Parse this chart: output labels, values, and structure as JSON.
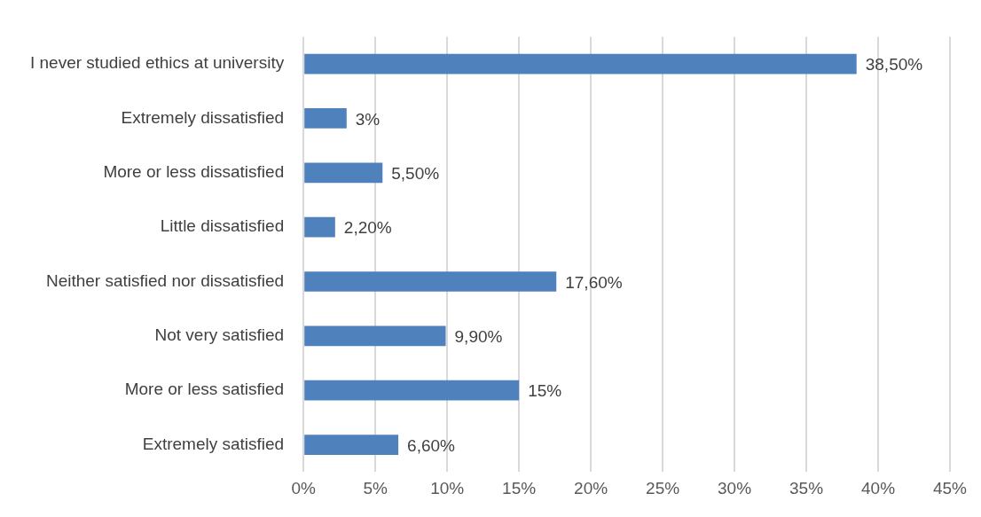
{
  "chart_data": {
    "type": "bar",
    "orientation": "horizontal",
    "categories": [
      "I never studied ethics at university",
      "Extremely dissatisfied",
      "More or less dissatisfied",
      "Little dissatisfied",
      "Neither satisfied nor dissatisfied",
      "Not very satisfied",
      "More or less satisfied",
      "Extremely satisfied"
    ],
    "values": [
      38.5,
      3,
      5.5,
      2.2,
      17.6,
      9.9,
      15,
      6.6
    ],
    "value_labels": [
      "38,50%",
      "3%",
      "5,50%",
      "2,20%",
      "17,60%",
      "9,90%",
      "15%",
      "6,60%"
    ],
    "color": "#4f81bd",
    "xlim": [
      0,
      45
    ],
    "xticks": [
      {
        "value": 0,
        "label": "0%"
      },
      {
        "value": 5,
        "label": "5%"
      },
      {
        "value": 10,
        "label": "10%"
      },
      {
        "value": 15,
        "label": "15%"
      },
      {
        "value": 20,
        "label": "20%"
      },
      {
        "value": 25,
        "label": "25%"
      },
      {
        "value": 30,
        "label": "30%"
      },
      {
        "value": 35,
        "label": "35%"
      },
      {
        "value": 40,
        "label": "40%"
      },
      {
        "value": 45,
        "label": "45%"
      }
    ],
    "grid": "x",
    "legend": false
  }
}
